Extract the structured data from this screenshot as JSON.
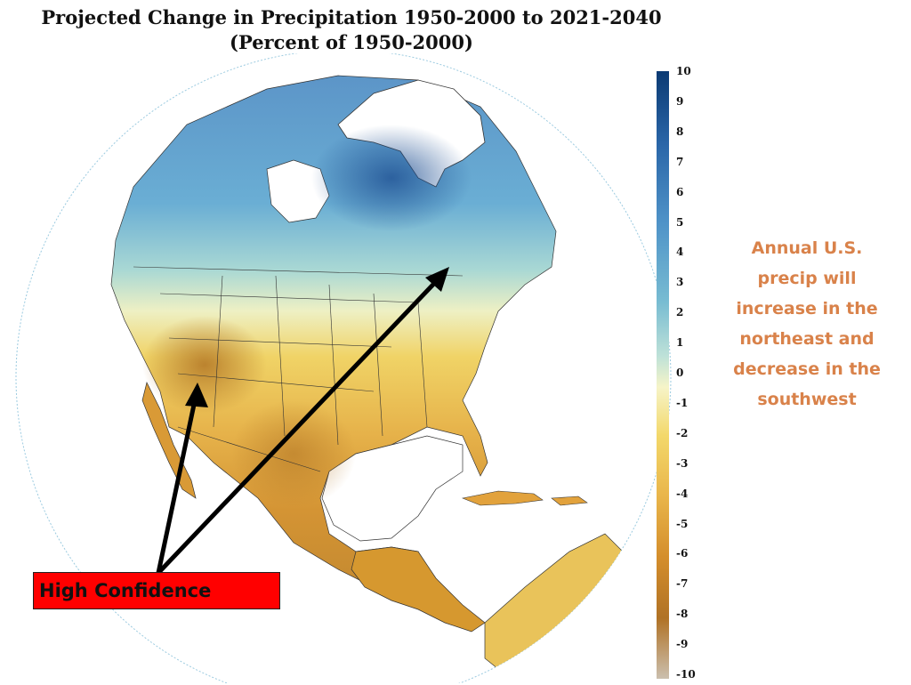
{
  "title": {
    "line1": "Projected Change in Precipitation 1950-2000 to 2021-2040",
    "line2": "(Percent of 1950-2000)"
  },
  "colorbar": {
    "ticks": [
      "10",
      "9",
      "8",
      "7",
      "6",
      "5",
      "4",
      "3",
      "2",
      "1",
      "0",
      "-1",
      "-2",
      "-3",
      "-4",
      "-5",
      "-6",
      "-7",
      "-8",
      "-9",
      "-10"
    ],
    "colors": {
      "positive_max": "#0b3a73",
      "neutral": "#f6f4c8",
      "negative_max": "#b07225"
    }
  },
  "annotation": {
    "text": "Annual U.S. precip will increase in the northeast and decrease in the southwest"
  },
  "callout": {
    "label": "High Confidence",
    "box_color": "#ff0000"
  }
}
